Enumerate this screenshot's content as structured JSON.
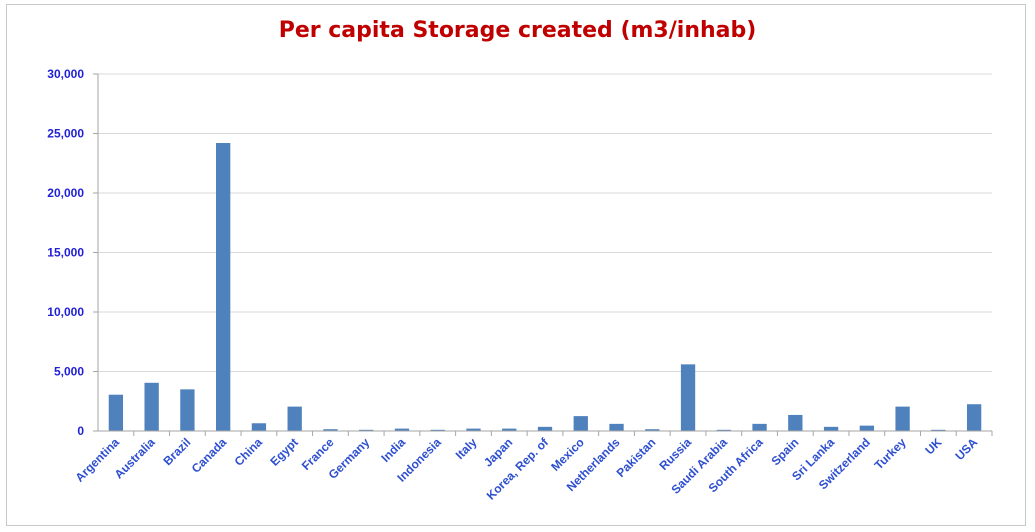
{
  "chart_data": {
    "type": "bar",
    "title": "Per capita Storage created (m3/inhab)",
    "xlabel": "",
    "ylabel": "",
    "ylim": [
      0,
      30000
    ],
    "yticks": [
      "0",
      "5,000",
      "10,000",
      "15,000",
      "20,000",
      "25,000",
      "30,000"
    ],
    "ytick_values": [
      0,
      5000,
      10000,
      15000,
      20000,
      25000,
      30000
    ],
    "grid": true,
    "legend": "none",
    "categories": [
      "Argentina",
      "Australia",
      "Brazil",
      "Canada",
      "China",
      "Egypt",
      "France",
      "Germany",
      "India",
      "Indonesia",
      "Italy",
      "Japan",
      "Korea, Rep. of",
      "Mexico",
      "Netherlands",
      "Pakistan",
      "Russia",
      "Saudi Arabia",
      "South Africa",
      "Spain",
      "Sri Lanka",
      "Switzerland",
      "Turkey",
      "UK",
      "USA"
    ],
    "values": [
      3050,
      4050,
      3500,
      24200,
      650,
      2050,
      150,
      100,
      200,
      100,
      200,
      200,
      350,
      1250,
      600,
      150,
      5600,
      100,
      600,
      1350,
      350,
      450,
      2050,
      100,
      2250
    ],
    "colors": {
      "bar": "#4f81bd",
      "title": "#c00000",
      "ytick": "#1f1fd6",
      "xtick": "#2e4fd0",
      "grid": "#d9d9d9",
      "axis": "#a6a6a6"
    }
  }
}
